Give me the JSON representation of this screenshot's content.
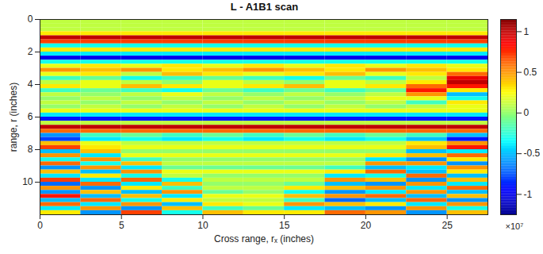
{
  "chart_data": {
    "type": "heatmap",
    "title": "L - A1B1 scan",
    "x_label": "Cross range, rₓ (inches)",
    "y_label": "range, r (inches)",
    "xlim": [
      0,
      27.5
    ],
    "ylim": [
      0,
      12
    ],
    "xticks": [
      0,
      5,
      10,
      15,
      20,
      25
    ],
    "yticks": [
      0,
      2,
      4,
      6,
      8,
      10
    ],
    "x": [
      1.25,
      3.75,
      6.25,
      8.75,
      11.25,
      13.75,
      16.25,
      18.75,
      21.25,
      23.75,
      26.25
    ],
    "y": [
      0.125,
      0.375,
      0.625,
      0.875,
      1.125,
      1.375,
      1.625,
      1.875,
      2.125,
      2.375,
      2.625,
      2.875,
      3.125,
      3.375,
      3.625,
      3.875,
      4.125,
      4.375,
      4.625,
      4.875,
      5.125,
      5.375,
      5.625,
      5.875,
      6.125,
      6.375,
      6.625,
      6.875,
      7.125,
      7.375,
      7.625,
      7.875,
      8.125,
      8.375,
      8.625,
      8.875,
      9.125,
      9.375,
      9.625,
      9.875,
      10.125,
      10.375,
      10.625,
      10.875,
      11.125,
      11.375,
      11.625,
      11.875
    ],
    "values": [
      [
        0.1,
        0.1,
        0.1,
        0.1,
        0.1,
        0.1,
        0.1,
        0.1,
        0.1,
        0.1,
        0.1
      ],
      [
        0.1,
        0.1,
        0.1,
        0.1,
        0.1,
        0.1,
        0.1,
        0.1,
        0.1,
        0.1,
        0.1
      ],
      [
        0.1,
        0.1,
        0.1,
        0.1,
        0.1,
        0.1,
        0.1,
        0.1,
        0.1,
        0.1,
        0.1
      ],
      [
        0.3,
        0.3,
        0.3,
        0.3,
        0.3,
        0.3,
        0.3,
        0.3,
        0.3,
        0.3,
        0.3
      ],
      [
        1.0,
        1.0,
        1.0,
        1.0,
        1.0,
        1.0,
        1.0,
        1.0,
        1.0,
        1.0,
        1.0
      ],
      [
        0.7,
        0.7,
        0.7,
        0.7,
        0.7,
        0.7,
        0.7,
        0.7,
        0.7,
        0.7,
        0.7
      ],
      [
        -0.3,
        -0.3,
        -0.3,
        -0.3,
        -0.3,
        -0.3,
        -0.3,
        -0.3,
        -0.3,
        -0.3,
        -0.3
      ],
      [
        0.3,
        0.3,
        0.3,
        0.3,
        0.3,
        0.3,
        0.3,
        0.3,
        0.3,
        0.3,
        0.3
      ],
      [
        -0.4,
        -0.4,
        -0.4,
        -0.4,
        -0.4,
        -0.4,
        -0.4,
        -0.4,
        -0.4,
        -0.4,
        -0.4
      ],
      [
        -1.0,
        -1.0,
        -1.0,
        -1.0,
        -1.0,
        -1.0,
        -1.0,
        -1.0,
        -1.0,
        -1.0,
        -1.0
      ],
      [
        -0.3,
        -0.3,
        -0.3,
        -0.3,
        -0.3,
        -0.3,
        -0.3,
        -0.3,
        -0.3,
        -0.3,
        -0.3
      ],
      [
        0.2,
        0.3,
        0.2,
        0.3,
        0.2,
        0.3,
        0.2,
        0.3,
        0.2,
        0.3,
        0.2
      ],
      [
        0.5,
        0.4,
        0.5,
        0.3,
        0.4,
        0.5,
        0.4,
        0.3,
        0.5,
        0.4,
        0.3
      ],
      [
        0.2,
        0.3,
        0.1,
        0.4,
        0.3,
        0.2,
        0.3,
        0.4,
        0.2,
        0.3,
        0.6
      ],
      [
        -0.2,
        -0.1,
        -0.3,
        -0.2,
        -0.1,
        -0.2,
        -0.3,
        -0.1,
        -0.2,
        0.1,
        0.9
      ],
      [
        0.1,
        0.2,
        0.1,
        0.0,
        0.2,
        0.1,
        0.0,
        0.2,
        0.1,
        0.3,
        1.0
      ],
      [
        0.3,
        0.2,
        0.4,
        0.3,
        0.2,
        0.3,
        0.4,
        0.2,
        0.3,
        0.6,
        0.8
      ],
      [
        -0.2,
        -0.1,
        -0.2,
        -0.3,
        -0.1,
        -0.2,
        -0.1,
        -0.2,
        -0.1,
        0.8,
        0.3
      ],
      [
        0.1,
        0.0,
        0.1,
        0.2,
        0.1,
        0.0,
        0.1,
        0.0,
        0.1,
        0.5,
        -0.5
      ],
      [
        0.0,
        0.1,
        0.0,
        0.1,
        0.0,
        0.1,
        0.0,
        0.1,
        0.2,
        0.2,
        -0.3
      ],
      [
        0.1,
        0.0,
        0.1,
        0.0,
        0.1,
        0.0,
        0.1,
        0.0,
        0.1,
        -0.2,
        0.3
      ],
      [
        0.0,
        0.1,
        0.0,
        0.1,
        0.0,
        0.1,
        0.0,
        0.1,
        0.0,
        0.1,
        0.2
      ],
      [
        0.2,
        0.2,
        0.2,
        0.2,
        0.2,
        0.2,
        0.2,
        0.2,
        0.2,
        0.2,
        0.2
      ],
      [
        -0.4,
        -0.4,
        -0.4,
        -0.4,
        -0.4,
        -0.4,
        -0.4,
        -0.4,
        -0.4,
        -0.4,
        -0.4
      ],
      [
        -0.9,
        -0.9,
        -0.9,
        -0.9,
        -0.9,
        -0.9,
        -0.9,
        -0.9,
        -0.9,
        -0.9,
        -0.9
      ],
      [
        0.1,
        0.1,
        0.1,
        0.1,
        0.1,
        0.1,
        0.1,
        0.1,
        0.1,
        0.1,
        0.1
      ],
      [
        1.0,
        1.0,
        1.0,
        1.0,
        1.0,
        1.0,
        1.0,
        1.0,
        1.0,
        1.0,
        1.0
      ],
      [
        0.6,
        0.6,
        0.6,
        0.6,
        0.6,
        0.6,
        0.6,
        0.6,
        0.6,
        0.6,
        0.6
      ],
      [
        -0.6,
        -0.2,
        -0.1,
        -0.2,
        -0.1,
        -0.2,
        -0.1,
        -0.2,
        -0.1,
        -0.2,
        -0.5
      ],
      [
        -0.8,
        -0.4,
        -0.3,
        -0.4,
        -0.3,
        -0.4,
        -0.3,
        -0.4,
        -0.3,
        -0.5,
        -0.9
      ],
      [
        0.4,
        0.2,
        0.1,
        0.1,
        0.1,
        0.1,
        0.1,
        0.1,
        0.1,
        0.3,
        0.5
      ],
      [
        0.7,
        0.3,
        0.2,
        0.2,
        0.2,
        0.2,
        0.2,
        0.2,
        0.2,
        0.4,
        0.8
      ],
      [
        -0.5,
        0.4,
        0.0,
        0.0,
        0.0,
        0.0,
        0.0,
        0.0,
        0.0,
        -0.5,
        -0.4
      ],
      [
        0.5,
        -0.4,
        0.2,
        0.2,
        0.2,
        0.2,
        0.2,
        0.2,
        0.3,
        0.4,
        0.6
      ],
      [
        -0.3,
        0.5,
        -0.2,
        0.0,
        0.0,
        0.0,
        0.0,
        0.0,
        -0.4,
        -0.6,
        0.3
      ],
      [
        0.6,
        -0.3,
        0.4,
        0.1,
        0.1,
        0.1,
        0.1,
        0.1,
        0.5,
        0.5,
        -0.6
      ],
      [
        -0.6,
        0.5,
        -0.4,
        -0.1,
        -0.1,
        -0.1,
        -0.1,
        -0.2,
        -0.5,
        -0.4,
        0.5
      ],
      [
        0.4,
        -0.5,
        0.5,
        0.2,
        0.2,
        0.2,
        0.2,
        0.3,
        0.6,
        -0.5,
        0.3
      ],
      [
        -0.4,
        0.3,
        -0.3,
        0.1,
        0.0,
        0.0,
        0.0,
        -0.4,
        -0.3,
        0.6,
        -0.5
      ],
      [
        0.7,
        -0.4,
        0.6,
        -0.3,
        0.1,
        0.1,
        0.1,
        0.5,
        0.4,
        -0.6,
        0.4
      ],
      [
        -0.7,
        0.6,
        -0.4,
        0.4,
        0.0,
        0.0,
        -0.1,
        -0.5,
        -0.6,
        0.5,
        -0.4
      ],
      [
        0.5,
        -0.6,
        0.3,
        -0.2,
        0.1,
        0.1,
        0.3,
        0.4,
        0.5,
        -0.4,
        0.6
      ],
      [
        -0.6,
        0.4,
        -0.5,
        0.5,
        -0.1,
        0.0,
        -0.3,
        -0.6,
        -0.4,
        0.5,
        -0.5
      ],
      [
        0.8,
        -0.5,
        0.4,
        -0.4,
        0.2,
        0.2,
        0.4,
        0.5,
        0.6,
        -0.5,
        0.4
      ],
      [
        -0.5,
        0.6,
        -0.3,
        0.3,
        0.1,
        0.1,
        -0.2,
        -0.7,
        -0.5,
        0.6,
        -0.6
      ],
      [
        0.6,
        -0.4,
        0.5,
        -0.5,
        0.3,
        0.2,
        0.5,
        0.4,
        0.3,
        -0.4,
        0.5
      ],
      [
        -0.4,
        0.5,
        -0.6,
        0.4,
        -0.2,
        -0.1,
        -0.4,
        -0.5,
        -0.6,
        0.5,
        -0.3
      ],
      [
        0.3,
        -0.6,
        0.7,
        -0.3,
        0.4,
        0.3,
        0.3,
        0.6,
        0.5,
        -0.6,
        0.4
      ]
    ],
    "colorbar": {
      "range": [
        -1.25,
        1.15
      ],
      "ticks": [
        -1,
        -0.5,
        0,
        0.5,
        1
      ],
      "label": "×10⁷"
    }
  }
}
